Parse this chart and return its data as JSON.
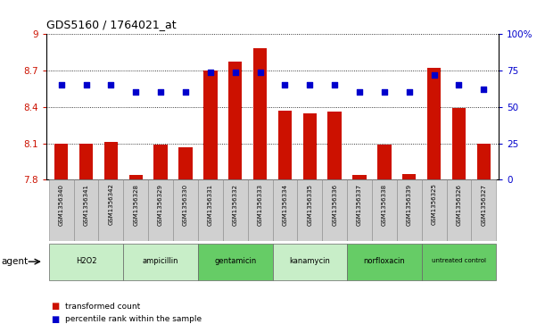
{
  "title": "GDS5160 / 1764021_at",
  "samples": [
    "GSM1356340",
    "GSM1356341",
    "GSM1356342",
    "GSM1356328",
    "GSM1356329",
    "GSM1356330",
    "GSM1356331",
    "GSM1356332",
    "GSM1356333",
    "GSM1356334",
    "GSM1356335",
    "GSM1356336",
    "GSM1356337",
    "GSM1356338",
    "GSM1356339",
    "GSM1356325",
    "GSM1356326",
    "GSM1356327"
  ],
  "red_values": [
    8.1,
    8.1,
    8.11,
    7.84,
    8.09,
    8.07,
    8.7,
    8.77,
    8.88,
    8.37,
    8.35,
    8.36,
    7.84,
    8.09,
    7.85,
    8.72,
    8.39,
    8.1
  ],
  "blue_values": [
    65,
    65,
    65,
    60,
    60,
    60,
    74,
    74,
    74,
    65,
    65,
    65,
    60,
    60,
    60,
    72,
    65,
    62
  ],
  "groups": [
    {
      "label": "H2O2",
      "start": 0,
      "end": 3,
      "color": "#c8eec8"
    },
    {
      "label": "ampicillin",
      "start": 3,
      "end": 6,
      "color": "#c8eec8"
    },
    {
      "label": "gentamicin",
      "start": 6,
      "end": 9,
      "color": "#66cc66"
    },
    {
      "label": "kanamycin",
      "start": 9,
      "end": 12,
      "color": "#c8eec8"
    },
    {
      "label": "norfloxacin",
      "start": 12,
      "end": 15,
      "color": "#66cc66"
    },
    {
      "label": "untreated control",
      "start": 15,
      "end": 18,
      "color": "#66cc66"
    }
  ],
  "ymin": 7.8,
  "ymax": 9.0,
  "yticks_left": [
    7.8,
    8.1,
    8.4,
    8.7,
    9.0
  ],
  "ytick_labels_left": [
    "7.8",
    "8.1",
    "8.4",
    "8.7",
    "9"
  ],
  "yticks_right": [
    0,
    25,
    50,
    75,
    100
  ],
  "bar_color": "#cc1100",
  "dot_color": "#0000cc",
  "bar_width": 0.55,
  "legend_red": "transformed count",
  "legend_blue": "percentile rank within the sample",
  "agent_label": "agent"
}
